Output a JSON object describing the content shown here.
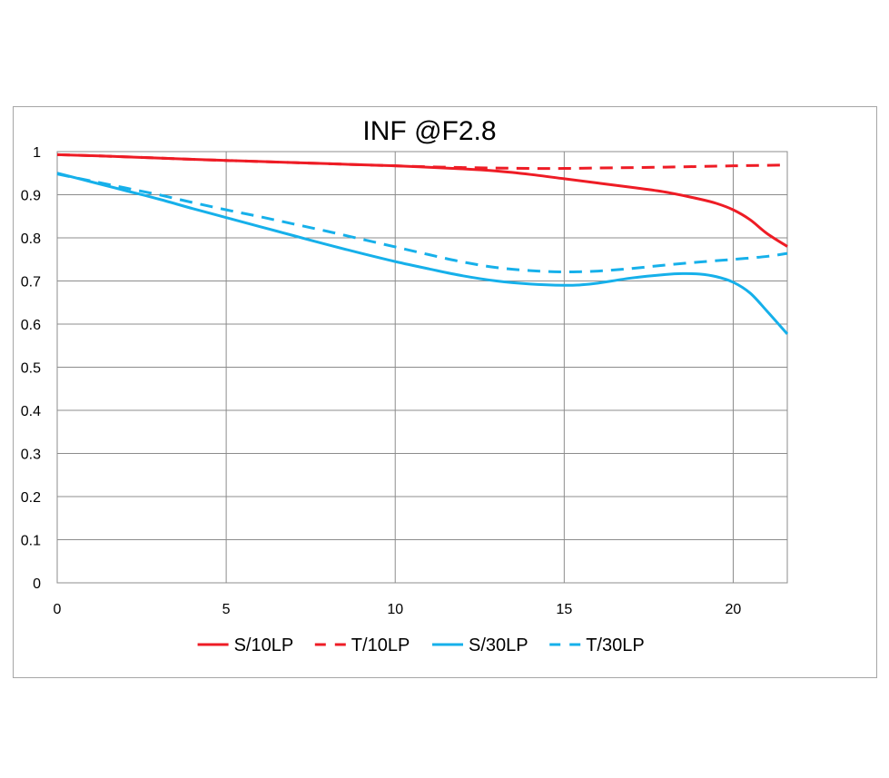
{
  "chart_data": {
    "type": "line",
    "title": "INF @F2.8",
    "xlabel": "",
    "ylabel": "",
    "xlim": [
      0,
      21.6
    ],
    "ylim": [
      0,
      1
    ],
    "x_ticks": [
      0,
      5,
      10,
      15,
      20
    ],
    "x_tick_labels": [
      "0",
      "5",
      "10",
      "15",
      "20"
    ],
    "y_ticks": [
      0,
      0.1,
      0.2,
      0.3,
      0.4,
      0.5,
      0.6,
      0.7,
      0.8,
      0.9,
      1
    ],
    "y_tick_labels": [
      "0",
      "0.1",
      "0.2",
      "0.3",
      "0.4",
      "0.5",
      "0.6",
      "0.7",
      "0.8",
      "0.9",
      "1"
    ],
    "grid": true,
    "legend_position": "bottom",
    "series": [
      {
        "name": "S/10LP",
        "color": "#ee1c25",
        "dash": "solid",
        "x": [
          0,
          2,
          4,
          6,
          8,
          10,
          12,
          13,
          14,
          15,
          16,
          17,
          18,
          19,
          19.5,
          20,
          20.5,
          21,
          21.6
        ],
        "y": [
          0.993,
          0.988,
          0.982,
          0.977,
          0.972,
          0.967,
          0.96,
          0.955,
          0.947,
          0.937,
          0.927,
          0.917,
          0.906,
          0.89,
          0.88,
          0.865,
          0.842,
          0.81,
          0.78
        ]
      },
      {
        "name": "T/10LP",
        "color": "#ee1c25",
        "dash": "dashed",
        "x": [
          0,
          2,
          4,
          6,
          8,
          10,
          12,
          14,
          15,
          16,
          18,
          20,
          21.6
        ],
        "y": [
          0.993,
          0.988,
          0.982,
          0.977,
          0.972,
          0.967,
          0.963,
          0.961,
          0.961,
          0.962,
          0.964,
          0.967,
          0.969
        ]
      },
      {
        "name": "S/30LP",
        "color": "#16b0ea",
        "dash": "solid",
        "x": [
          0,
          1,
          2,
          3,
          4,
          5,
          6,
          7,
          8,
          9,
          10,
          11,
          12,
          13,
          14,
          15,
          15.5,
          16,
          17,
          18,
          18.5,
          19,
          19.5,
          20,
          20.5,
          21,
          21.6
        ],
        "y": [
          0.95,
          0.93,
          0.91,
          0.89,
          0.868,
          0.847,
          0.826,
          0.805,
          0.784,
          0.764,
          0.745,
          0.728,
          0.712,
          0.7,
          0.693,
          0.69,
          0.691,
          0.695,
          0.707,
          0.715,
          0.717,
          0.716,
          0.71,
          0.697,
          0.672,
          0.63,
          0.577
        ]
      },
      {
        "name": "T/30LP",
        "color": "#16b0ea",
        "dash": "dashed",
        "x": [
          0,
          1,
          2,
          3,
          4,
          5,
          6,
          7,
          8,
          9,
          10,
          11,
          12,
          13,
          14,
          15,
          16,
          17,
          18,
          19,
          20,
          21,
          21.6
        ],
        "y": [
          0.948,
          0.932,
          0.916,
          0.9,
          0.882,
          0.865,
          0.849,
          0.832,
          0.815,
          0.797,
          0.779,
          0.761,
          0.744,
          0.731,
          0.724,
          0.721,
          0.723,
          0.729,
          0.737,
          0.744,
          0.75,
          0.757,
          0.764
        ]
      }
    ]
  }
}
